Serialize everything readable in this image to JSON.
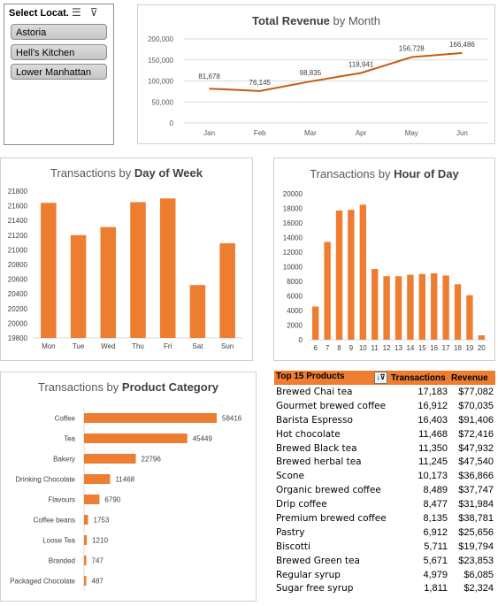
{
  "slicer": {
    "title": "Select Locat...",
    "items": [
      {
        "label": "Astoria"
      },
      {
        "label": "Hell's Kitchen"
      },
      {
        "label": "Lower Manhattan"
      }
    ]
  },
  "colors": {
    "accent": "#ed7d31",
    "grid": "#d9d9d9",
    "text": "#595959"
  },
  "chart_data": [
    {
      "id": "revenue",
      "type": "line",
      "title_plain": "Total Revenue",
      "title_bold": "",
      "title_suffix": " by Month",
      "categories": [
        "Jan",
        "Feb",
        "Mar",
        "Apr",
        "May",
        "Jun"
      ],
      "values": [
        81678,
        76145,
        98835,
        118941,
        156728,
        166486
      ],
      "labels": [
        "81,678",
        "76,145",
        "98,835",
        "118,941",
        "156,728",
        "166,486"
      ],
      "yticks": [
        "0",
        "50,000",
        "100,000",
        "150,000",
        "200,000"
      ],
      "ylim": [
        0,
        200000
      ],
      "grid": true
    },
    {
      "id": "dow",
      "type": "bar",
      "title_plain": "Transactions by ",
      "title_bold": "Day of Week",
      "categories": [
        "Mon",
        "Tue",
        "Wed",
        "Thu",
        "Fri",
        "Sat",
        "Sun"
      ],
      "values": [
        21640,
        21200,
        21310,
        21650,
        21700,
        20520,
        21090
      ],
      "yticks": [
        "19800",
        "20000",
        "20200",
        "20400",
        "20600",
        "20800",
        "21000",
        "21200",
        "21400",
        "21600",
        "21800"
      ],
      "ylim": [
        19800,
        21800
      ],
      "grid": false
    },
    {
      "id": "hour",
      "type": "bar",
      "title_plain": "Transactions by ",
      "title_bold": "Hour of Day",
      "categories": [
        "6",
        "7",
        "8",
        "9",
        "10",
        "11",
        "12",
        "13",
        "14",
        "15",
        "16",
        "17",
        "18",
        "19",
        "20"
      ],
      "values": [
        4550,
        13400,
        17700,
        17800,
        18500,
        9700,
        8700,
        8700,
        8900,
        9000,
        9100,
        8800,
        7600,
        6100,
        600
      ],
      "yticks": [
        "0",
        "2000",
        "4000",
        "6000",
        "8000",
        "10000",
        "12000",
        "14000",
        "16000",
        "18000",
        "20000"
      ],
      "ylim": [
        0,
        20000
      ],
      "grid": false
    },
    {
      "id": "category",
      "type": "bar",
      "orientation": "horizontal",
      "title_plain": "Transactions by ",
      "title_bold": "Product Category",
      "categories": [
        "Coffee",
        "Tea",
        "Bakery",
        "Drinking Chocolate",
        "Flavours",
        "Coffee beans",
        "Loose Tea",
        "Branded",
        "Packaged Chocolate"
      ],
      "values": [
        58416,
        45449,
        22796,
        11468,
        6790,
        1753,
        1210,
        747,
        487
      ],
      "labels": [
        "58416",
        "45449",
        "22796",
        "11468",
        "6790",
        "1753",
        "1210",
        "747",
        "487"
      ],
      "grid": false
    }
  ],
  "table": {
    "headers": [
      "Top 15 Products",
      "Transactions",
      "Revenue"
    ],
    "filter_icon": "sort-filter-icon",
    "rows": [
      [
        "Brewed Chai tea",
        "17,183",
        "$77,082"
      ],
      [
        "Gourmet brewed coffee",
        "16,912",
        "$70,035"
      ],
      [
        "Barista Espresso",
        "16,403",
        "$91,406"
      ],
      [
        "Hot chocolate",
        "11,468",
        "$72,416"
      ],
      [
        "Brewed Black tea",
        "11,350",
        "$47,932"
      ],
      [
        "Brewed herbal tea",
        "11,245",
        "$47,540"
      ],
      [
        "Scone",
        "10,173",
        "$36,866"
      ],
      [
        "Organic brewed coffee",
        "8,489",
        "$37,747"
      ],
      [
        "Drip coffee",
        "8,477",
        "$31,984"
      ],
      [
        "Premium brewed coffee",
        "8,135",
        "$38,781"
      ],
      [
        "Pastry",
        "6,912",
        "$25,656"
      ],
      [
        "Biscotti",
        "5,711",
        "$19,794"
      ],
      [
        "Brewed Green tea",
        "5,671",
        "$23,853"
      ],
      [
        "Regular syrup",
        "4,979",
        "$6,085"
      ],
      [
        "Sugar free syrup",
        "1,811",
        "$2,324"
      ]
    ]
  }
}
